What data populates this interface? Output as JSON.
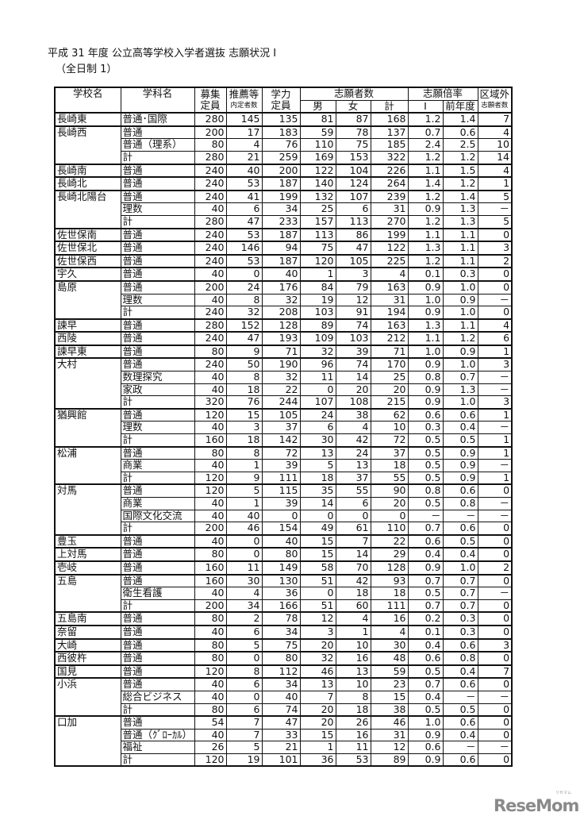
{
  "title": "平成 31 年度  公立高等学校入学者選抜  志願状況 I",
  "subtitle": "（全日制 1）",
  "header": {
    "school": "学校名",
    "dept": "学科名",
    "quota": [
      "募集",
      "定員"
    ],
    "recommend": [
      "推薦等",
      "内定者数"
    ],
    "academic": [
      "学力",
      "定員"
    ],
    "applicants": "志願者数",
    "male": "男",
    "female": "女",
    "total": "計",
    "ratio": "志願倍率",
    "ratio_current": "I",
    "ratio_prev": "前年度",
    "outside": [
      "区域外",
      "志願者数"
    ]
  },
  "schools": [
    {
      "name": "長崎東",
      "rows": [
        [
          "普通･国際",
          "280",
          "145",
          "135",
          "81",
          "87",
          "168",
          "1.2",
          "1.4",
          "7"
        ]
      ]
    },
    {
      "name": "長崎西",
      "rows": [
        [
          "普通",
          "200",
          "17",
          "183",
          "59",
          "78",
          "137",
          "0.7",
          "0.6",
          "4"
        ],
        [
          "普通（理系）",
          "80",
          "4",
          "76",
          "110",
          "75",
          "185",
          "2.4",
          "2.5",
          "10"
        ],
        [
          "計",
          "280",
          "21",
          "259",
          "169",
          "153",
          "322",
          "1.2",
          "1.2",
          "14"
        ]
      ]
    },
    {
      "name": "長崎南",
      "rows": [
        [
          "普通",
          "240",
          "40",
          "200",
          "122",
          "104",
          "226",
          "1.1",
          "1.5",
          "4"
        ]
      ]
    },
    {
      "name": "長崎北",
      "rows": [
        [
          "普通",
          "240",
          "53",
          "187",
          "140",
          "124",
          "264",
          "1.4",
          "1.2",
          "1"
        ]
      ]
    },
    {
      "name": "長崎北陽台",
      "rows": [
        [
          "普通",
          "240",
          "41",
          "199",
          "132",
          "107",
          "239",
          "1.2",
          "1.4",
          "5"
        ],
        [
          "理数",
          "40",
          "6",
          "34",
          "25",
          "6",
          "31",
          "0.9",
          "1.3",
          "－"
        ],
        [
          "計",
          "280",
          "47",
          "233",
          "157",
          "113",
          "270",
          "1.2",
          "1.3",
          "5"
        ]
      ]
    },
    {
      "name": "佐世保南",
      "rows": [
        [
          "普通",
          "240",
          "53",
          "187",
          "113",
          "86",
          "199",
          "1.1",
          "1.1",
          "0"
        ]
      ]
    },
    {
      "name": "佐世保北",
      "rows": [
        [
          "普通",
          "240",
          "146",
          "94",
          "75",
          "47",
          "122",
          "1.3",
          "1.1",
          "3"
        ]
      ]
    },
    {
      "name": "佐世保西",
      "rows": [
        [
          "普通",
          "240",
          "53",
          "187",
          "120",
          "105",
          "225",
          "1.2",
          "1.1",
          "2"
        ]
      ]
    },
    {
      "name": "宇久",
      "rows": [
        [
          "普通",
          "40",
          "0",
          "40",
          "1",
          "3",
          "4",
          "0.1",
          "0.3",
          "0"
        ]
      ]
    },
    {
      "name": "島原",
      "rows": [
        [
          "普通",
          "200",
          "24",
          "176",
          "84",
          "79",
          "163",
          "0.9",
          "1.0",
          "0"
        ],
        [
          "理数",
          "40",
          "8",
          "32",
          "19",
          "12",
          "31",
          "1.0",
          "0.9",
          "－"
        ],
        [
          "計",
          "240",
          "32",
          "208",
          "103",
          "91",
          "194",
          "0.9",
          "1.0",
          "0"
        ]
      ]
    },
    {
      "name": "諫早",
      "rows": [
        [
          "普通",
          "280",
          "152",
          "128",
          "89",
          "74",
          "163",
          "1.3",
          "1.1",
          "4"
        ]
      ]
    },
    {
      "name": "西陵",
      "rows": [
        [
          "普通",
          "240",
          "47",
          "193",
          "109",
          "103",
          "212",
          "1.1",
          "1.2",
          "6"
        ]
      ]
    },
    {
      "name": "諫早東",
      "rows": [
        [
          "普通",
          "80",
          "9",
          "71",
          "32",
          "39",
          "71",
          "1.0",
          "0.9",
          "1"
        ]
      ]
    },
    {
      "name": "大村",
      "rows": [
        [
          "普通",
          "240",
          "50",
          "190",
          "96",
          "74",
          "170",
          "0.9",
          "1.0",
          "3"
        ],
        [
          "数理探究",
          "40",
          "8",
          "32",
          "11",
          "14",
          "25",
          "0.8",
          "0.7",
          "－"
        ],
        [
          "家政",
          "40",
          "18",
          "22",
          "0",
          "20",
          "20",
          "0.9",
          "1.3",
          "－"
        ],
        [
          "計",
          "320",
          "76",
          "244",
          "107",
          "108",
          "215",
          "0.9",
          "1.0",
          "3"
        ]
      ]
    },
    {
      "name": "猶興館",
      "rows": [
        [
          "普通",
          "120",
          "15",
          "105",
          "24",
          "38",
          "62",
          "0.6",
          "0.6",
          "1"
        ],
        [
          "理数",
          "40",
          "3",
          "37",
          "6",
          "4",
          "10",
          "0.3",
          "0.4",
          "－"
        ],
        [
          "計",
          "160",
          "18",
          "142",
          "30",
          "42",
          "72",
          "0.5",
          "0.5",
          "1"
        ]
      ]
    },
    {
      "name": "松浦",
      "rows": [
        [
          "普通",
          "80",
          "8",
          "72",
          "13",
          "24",
          "37",
          "0.5",
          "0.9",
          "1"
        ],
        [
          "商業",
          "40",
          "1",
          "39",
          "5",
          "13",
          "18",
          "0.5",
          "0.9",
          "－"
        ],
        [
          "計",
          "120",
          "9",
          "111",
          "18",
          "37",
          "55",
          "0.5",
          "0.9",
          "1"
        ]
      ]
    },
    {
      "name": "対馬",
      "rows": [
        [
          "普通",
          "120",
          "5",
          "115",
          "35",
          "55",
          "90",
          "0.8",
          "0.6",
          "0"
        ],
        [
          "商業",
          "40",
          "1",
          "39",
          "14",
          "6",
          "20",
          "0.5",
          "0.8",
          "－"
        ],
        [
          "国際文化交流",
          "40",
          "40",
          "0",
          "0",
          "0",
          "0",
          "－",
          "－",
          "－"
        ],
        [
          "計",
          "200",
          "46",
          "154",
          "49",
          "61",
          "110",
          "0.7",
          "0.6",
          "0"
        ]
      ]
    },
    {
      "name": "豊玉",
      "rows": [
        [
          "普通",
          "40",
          "0",
          "40",
          "15",
          "7",
          "22",
          "0.6",
          "0.5",
          "0"
        ]
      ]
    },
    {
      "name": "上対馬",
      "rows": [
        [
          "普通",
          "80",
          "0",
          "80",
          "15",
          "14",
          "29",
          "0.4",
          "0.4",
          "0"
        ]
      ]
    },
    {
      "name": "壱岐",
      "rows": [
        [
          "普通",
          "160",
          "11",
          "149",
          "58",
          "70",
          "128",
          "0.9",
          "1.0",
          "2"
        ]
      ]
    },
    {
      "name": "五島",
      "rows": [
        [
          "普通",
          "160",
          "30",
          "130",
          "51",
          "42",
          "93",
          "0.7",
          "0.7",
          "0"
        ],
        [
          "衛生看護",
          "40",
          "4",
          "36",
          "0",
          "18",
          "18",
          "0.5",
          "0.7",
          "－"
        ],
        [
          "計",
          "200",
          "34",
          "166",
          "51",
          "60",
          "111",
          "0.7",
          "0.7",
          "0"
        ]
      ]
    },
    {
      "name": "五島南",
      "rows": [
        [
          "普通",
          "80",
          "2",
          "78",
          "12",
          "4",
          "16",
          "0.2",
          "0.3",
          "0"
        ]
      ]
    },
    {
      "name": "奈留",
      "rows": [
        [
          "普通",
          "40",
          "6",
          "34",
          "3",
          "1",
          "4",
          "0.1",
          "0.3",
          "0"
        ]
      ]
    },
    {
      "name": "大崎",
      "rows": [
        [
          "普通",
          "80",
          "5",
          "75",
          "20",
          "10",
          "30",
          "0.4",
          "0.6",
          "3"
        ]
      ]
    },
    {
      "name": "西彼杵",
      "rows": [
        [
          "普通",
          "80",
          "0",
          "80",
          "32",
          "16",
          "48",
          "0.6",
          "0.8",
          "0"
        ]
      ]
    },
    {
      "name": "国見",
      "rows": [
        [
          "普通",
          "120",
          "8",
          "112",
          "46",
          "13",
          "59",
          "0.5",
          "0.4",
          "7"
        ]
      ]
    },
    {
      "name": "小浜",
      "rows": [
        [
          "普通",
          "40",
          "6",
          "34",
          "13",
          "10",
          "23",
          "0.7",
          "0.6",
          "0"
        ],
        [
          "総合ビジネス",
          "40",
          "0",
          "40",
          "7",
          "8",
          "15",
          "0.4",
          "－",
          "－"
        ],
        [
          "計",
          "80",
          "6",
          "74",
          "20",
          "18",
          "38",
          "0.5",
          "0.5",
          "0"
        ]
      ]
    },
    {
      "name": "口加",
      "rows": [
        [
          "普通",
          "54",
          "7",
          "47",
          "20",
          "26",
          "46",
          "1.0",
          "0.6",
          "0"
        ],
        [
          "普通（ｸﾞﾛｰｶﾙ）",
          "40",
          "7",
          "33",
          "15",
          "16",
          "31",
          "0.9",
          "0.4",
          "0"
        ],
        [
          "福祉",
          "26",
          "5",
          "21",
          "1",
          "11",
          "12",
          "0.6",
          "－",
          "－"
        ],
        [
          "計",
          "120",
          "19",
          "101",
          "36",
          "53",
          "89",
          "0.9",
          "0.6",
          "0"
        ]
      ]
    }
  ],
  "logo": {
    "text": "ReseMom",
    "ruby": "リセマム",
    "color": "#8a8a8a"
  }
}
